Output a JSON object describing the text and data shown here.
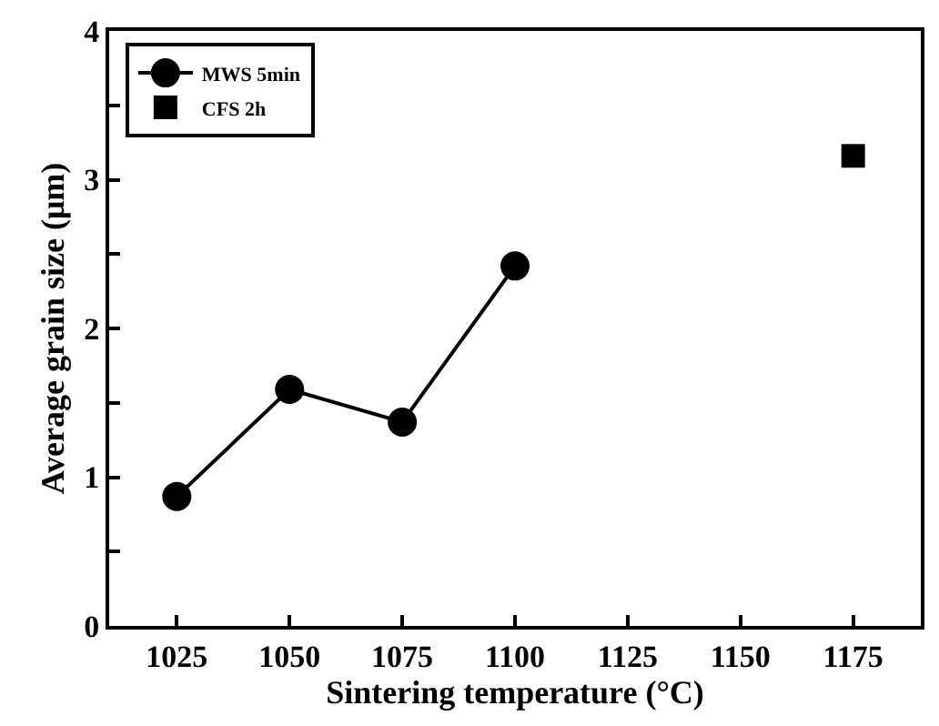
{
  "chart_data": {
    "type": "scatter",
    "xlabel": "Sintering temperature (°C)",
    "ylabel": "Average grain size (μm)",
    "xlim": [
      1010,
      1190
    ],
    "xticks": [
      1025,
      1050,
      1075,
      1100,
      1125,
      1150,
      1175
    ],
    "ylim": [
      0,
      4
    ],
    "yticks": [
      0,
      {
        "value": 0.5,
        "label": null
      },
      1,
      {
        "value": 1.5,
        "label": null
      },
      2,
      {
        "value": 2.5,
        "label": null
      },
      3,
      {
        "value": 3.5,
        "label": null
      },
      4
    ],
    "legend": "top left",
    "series": [
      {
        "name": "MWS 5min",
        "type": "line",
        "marker": "circle",
        "line_style": "solid",
        "color": "#000000",
        "x": [
          1025,
          1050,
          1075,
          1100
        ],
        "values": [
          0.87,
          1.59,
          1.37,
          2.42
        ]
      },
      {
        "name": "CFS 2h",
        "marker": "square",
        "color": "#000000",
        "x": [
          1175
        ],
        "values": [
          3.16
        ]
      }
    ]
  }
}
